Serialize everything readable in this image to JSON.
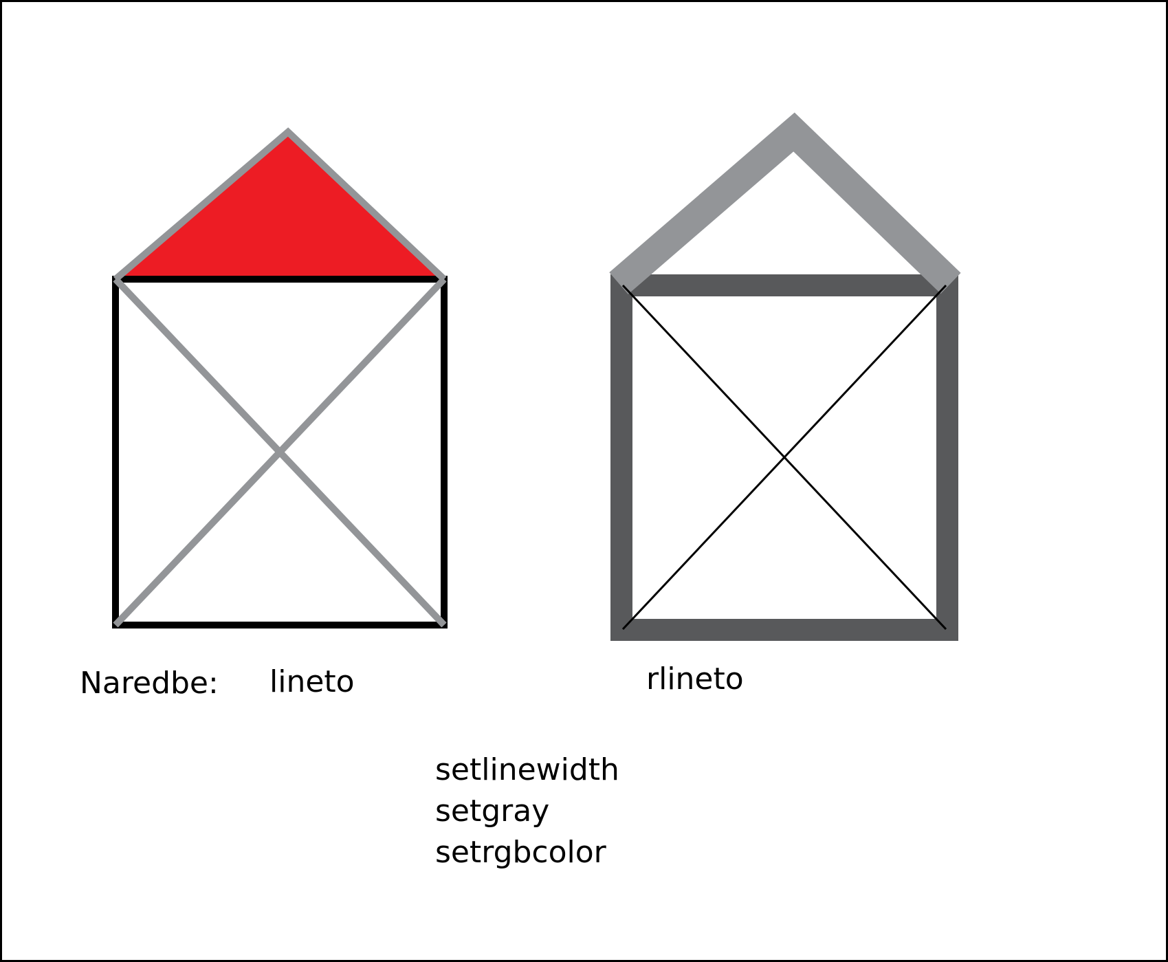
{
  "labels": {
    "prefix": "Naredbe:",
    "left_house": "lineto",
    "right_house": "rlineto"
  },
  "commands": [
    "setlinewidth",
    "setgray",
    "setrgbcolor"
  ],
  "colors": {
    "background": "#ffffff",
    "frame": "#000000",
    "roof_fill": "#ed1c24",
    "light_gray": "#939598",
    "dark_gray": "#58595b",
    "black": "#000000"
  }
}
